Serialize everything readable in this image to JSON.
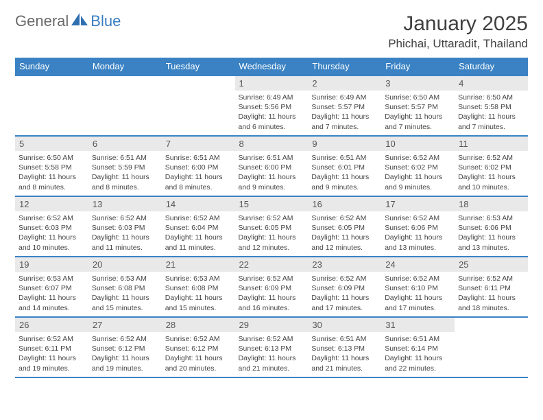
{
  "logo": {
    "text1": "General",
    "text2": "Blue"
  },
  "title": "January 2025",
  "location": "Phichai, Uttaradit, Thailand",
  "colors": {
    "header_bar": "#3a82c4",
    "header_text": "#ffffff",
    "daynum_bg": "#e9e9e9",
    "border": "#3a82c4",
    "logo_gray": "#6a6a6a",
    "logo_blue": "#3a7ec2"
  },
  "weekdays": [
    "Sunday",
    "Monday",
    "Tuesday",
    "Wednesday",
    "Thursday",
    "Friday",
    "Saturday"
  ],
  "weeks": [
    [
      null,
      null,
      null,
      {
        "d": "1",
        "sr": "6:49 AM",
        "ss": "5:56 PM",
        "dl": "11 hours and 6 minutes."
      },
      {
        "d": "2",
        "sr": "6:49 AM",
        "ss": "5:57 PM",
        "dl": "11 hours and 7 minutes."
      },
      {
        "d": "3",
        "sr": "6:50 AM",
        "ss": "5:57 PM",
        "dl": "11 hours and 7 minutes."
      },
      {
        "d": "4",
        "sr": "6:50 AM",
        "ss": "5:58 PM",
        "dl": "11 hours and 7 minutes."
      }
    ],
    [
      {
        "d": "5",
        "sr": "6:50 AM",
        "ss": "5:58 PM",
        "dl": "11 hours and 8 minutes."
      },
      {
        "d": "6",
        "sr": "6:51 AM",
        "ss": "5:59 PM",
        "dl": "11 hours and 8 minutes."
      },
      {
        "d": "7",
        "sr": "6:51 AM",
        "ss": "6:00 PM",
        "dl": "11 hours and 8 minutes."
      },
      {
        "d": "8",
        "sr": "6:51 AM",
        "ss": "6:00 PM",
        "dl": "11 hours and 9 minutes."
      },
      {
        "d": "9",
        "sr": "6:51 AM",
        "ss": "6:01 PM",
        "dl": "11 hours and 9 minutes."
      },
      {
        "d": "10",
        "sr": "6:52 AM",
        "ss": "6:02 PM",
        "dl": "11 hours and 9 minutes."
      },
      {
        "d": "11",
        "sr": "6:52 AM",
        "ss": "6:02 PM",
        "dl": "11 hours and 10 minutes."
      }
    ],
    [
      {
        "d": "12",
        "sr": "6:52 AM",
        "ss": "6:03 PM",
        "dl": "11 hours and 10 minutes."
      },
      {
        "d": "13",
        "sr": "6:52 AM",
        "ss": "6:03 PM",
        "dl": "11 hours and 11 minutes."
      },
      {
        "d": "14",
        "sr": "6:52 AM",
        "ss": "6:04 PM",
        "dl": "11 hours and 11 minutes."
      },
      {
        "d": "15",
        "sr": "6:52 AM",
        "ss": "6:05 PM",
        "dl": "11 hours and 12 minutes."
      },
      {
        "d": "16",
        "sr": "6:52 AM",
        "ss": "6:05 PM",
        "dl": "11 hours and 12 minutes."
      },
      {
        "d": "17",
        "sr": "6:52 AM",
        "ss": "6:06 PM",
        "dl": "11 hours and 13 minutes."
      },
      {
        "d": "18",
        "sr": "6:53 AM",
        "ss": "6:06 PM",
        "dl": "11 hours and 13 minutes."
      }
    ],
    [
      {
        "d": "19",
        "sr": "6:53 AM",
        "ss": "6:07 PM",
        "dl": "11 hours and 14 minutes."
      },
      {
        "d": "20",
        "sr": "6:53 AM",
        "ss": "6:08 PM",
        "dl": "11 hours and 15 minutes."
      },
      {
        "d": "21",
        "sr": "6:53 AM",
        "ss": "6:08 PM",
        "dl": "11 hours and 15 minutes."
      },
      {
        "d": "22",
        "sr": "6:52 AM",
        "ss": "6:09 PM",
        "dl": "11 hours and 16 minutes."
      },
      {
        "d": "23",
        "sr": "6:52 AM",
        "ss": "6:09 PM",
        "dl": "11 hours and 17 minutes."
      },
      {
        "d": "24",
        "sr": "6:52 AM",
        "ss": "6:10 PM",
        "dl": "11 hours and 17 minutes."
      },
      {
        "d": "25",
        "sr": "6:52 AM",
        "ss": "6:11 PM",
        "dl": "11 hours and 18 minutes."
      }
    ],
    [
      {
        "d": "26",
        "sr": "6:52 AM",
        "ss": "6:11 PM",
        "dl": "11 hours and 19 minutes."
      },
      {
        "d": "27",
        "sr": "6:52 AM",
        "ss": "6:12 PM",
        "dl": "11 hours and 19 minutes."
      },
      {
        "d": "28",
        "sr": "6:52 AM",
        "ss": "6:12 PM",
        "dl": "11 hours and 20 minutes."
      },
      {
        "d": "29",
        "sr": "6:52 AM",
        "ss": "6:13 PM",
        "dl": "11 hours and 21 minutes."
      },
      {
        "d": "30",
        "sr": "6:51 AM",
        "ss": "6:13 PM",
        "dl": "11 hours and 21 minutes."
      },
      {
        "d": "31",
        "sr": "6:51 AM",
        "ss": "6:14 PM",
        "dl": "11 hours and 22 minutes."
      },
      null
    ]
  ],
  "labels": {
    "sunrise": "Sunrise:",
    "sunset": "Sunset:",
    "daylight": "Daylight:"
  }
}
